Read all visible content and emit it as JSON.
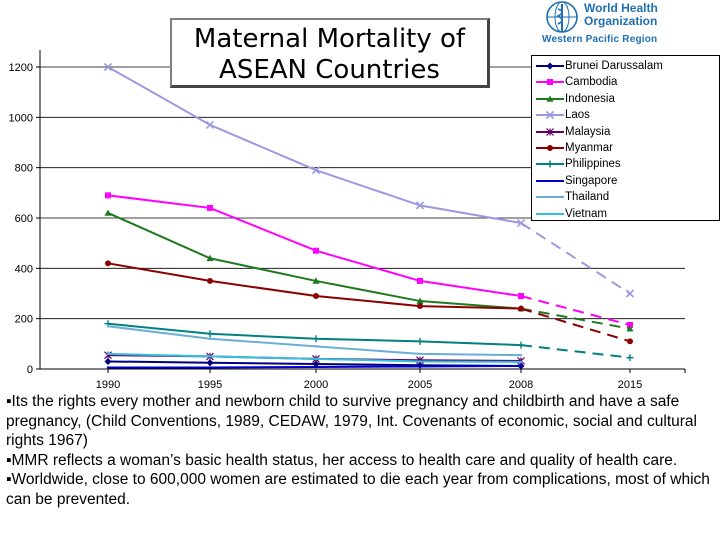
{
  "chart_data": {
    "type": "line",
    "title_lines": [
      "Maternal Mortality of",
      "ASEAN Countries"
    ],
    "x": [
      "1990",
      "1995",
      "2000",
      "2005",
      "2008",
      "2015"
    ],
    "ylim": [
      0,
      1200
    ],
    "yticks": [
      0,
      200,
      400,
      600,
      800,
      1000,
      1200
    ],
    "xlabel": "",
    "ylabel": "",
    "projection_note": "2008 to 2015 segments drawn dashed",
    "series": [
      {
        "name": "Brunei Darussalam",
        "color": "#000080",
        "marker": "diamond",
        "values": [
          30,
          25,
          20,
          15,
          12,
          null
        ]
      },
      {
        "name": "Cambodia",
        "color": "#ff00ff",
        "marker": "square",
        "values": [
          690,
          640,
          470,
          350,
          290,
          175
        ]
      },
      {
        "name": "Indonesia",
        "color": "#1e7a1e",
        "marker": "triangle",
        "values": [
          620,
          440,
          350,
          270,
          240,
          160
        ]
      },
      {
        "name": "Laos",
        "color": "#9a9ae0",
        "marker": "x",
        "values": [
          1200,
          970,
          790,
          650,
          580,
          300
        ]
      },
      {
        "name": "Malaysia",
        "color": "#660066",
        "marker": "star",
        "values": [
          55,
          50,
          40,
          35,
          32,
          null
        ]
      },
      {
        "name": "Myanmar",
        "color": "#8b0000",
        "marker": "circle",
        "values": [
          420,
          350,
          290,
          250,
          240,
          110
        ]
      },
      {
        "name": "Philippines",
        "color": "#008080",
        "marker": "plus",
        "values": [
          180,
          140,
          120,
          110,
          95,
          45
        ]
      },
      {
        "name": "Singapore",
        "color": "#0000cd",
        "marker": "none",
        "values": [
          6,
          6,
          8,
          10,
          12,
          null
        ]
      },
      {
        "name": "Thailand",
        "color": "#6aaed6",
        "marker": "none",
        "values": [
          170,
          120,
          90,
          60,
          55,
          null
        ]
      },
      {
        "name": "Vietnam",
        "color": "#33c0e0",
        "marker": "none",
        "values": [
          60,
          50,
          40,
          30,
          28,
          null
        ]
      }
    ]
  },
  "who": {
    "line1": "World Health",
    "line2": "Organization",
    "region": "Western Pacific Region"
  },
  "bullets": [
    "▪Its  the rights every mother and newborn child to survive pregnancy and childbirth and have a safe pregnancy, (Child Conventions, 1989, CEDAW, 1979, Int. Covenants of economic, social and cultural rights 1967)",
    "▪MMR reflects a woman’s basic health status, her access to health care and quality of health care.",
    "▪Worldwide, close to 600,000 women are estimated  to die each year from complications, most of which can be prevented."
  ],
  "colors": {
    "axis": "#000000",
    "grid": "#000000"
  }
}
